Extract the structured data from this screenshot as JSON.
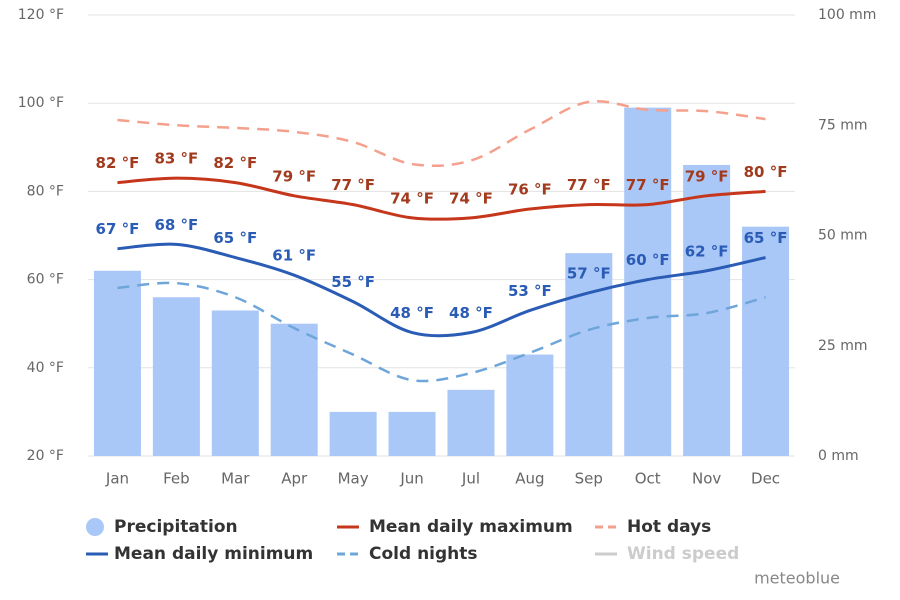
{
  "chart_data": {
    "type": "bar",
    "categories": [
      "Jan",
      "Feb",
      "Mar",
      "Apr",
      "May",
      "Jun",
      "Jul",
      "Aug",
      "Sep",
      "Oct",
      "Nov",
      "Dec"
    ],
    "ylim": [
      20,
      120
    ],
    "yticks": [
      {
        "value": 20,
        "label": "20 °F"
      },
      {
        "value": 40,
        "label": "40 °F"
      },
      {
        "value": 60,
        "label": "60 °F"
      },
      {
        "value": 80,
        "label": "80 °F"
      },
      {
        "value": 100,
        "label": "100 °F"
      },
      {
        "value": 120,
        "label": "120 °F"
      }
    ],
    "y2lim": [
      0,
      100
    ],
    "y2ticks": [
      {
        "value": 0,
        "label": "0 mm"
      },
      {
        "value": 25,
        "label": "25 mm"
      },
      {
        "value": 50,
        "label": "50 mm"
      },
      {
        "value": 75,
        "label": "75 mm"
      },
      {
        "value": 100,
        "label": "100 mm"
      }
    ],
    "grid": true,
    "series": [
      {
        "name": "Precipitation",
        "type": "bar",
        "axis": "y2",
        "color": "#a9c7f7",
        "values": [
          42,
          36,
          33,
          30,
          10,
          10,
          15,
          23,
          46,
          79,
          66,
          52
        ]
      },
      {
        "name": "Mean daily maximum",
        "type": "line",
        "color": "#c6361b",
        "label_color": "#a23a1e",
        "values": [
          82,
          83,
          82,
          79,
          77,
          74,
          74,
          76,
          77,
          77,
          79,
          80
        ],
        "value_labels": [
          "82 °F",
          "83 °F",
          "82 °F",
          "79 °F",
          "77 °F",
          "74 °F",
          "74 °F",
          "76 °F",
          "77 °F",
          "77 °F",
          "79 °F",
          "80 °F"
        ]
      },
      {
        "name": "Hot days",
        "type": "line",
        "dashed": true,
        "color": "#f4a08c",
        "values": [
          96.2,
          95,
          94.4,
          93.5,
          91.2,
          86.2,
          87,
          94,
          100.3,
          98.5,
          98.2,
          96.4
        ]
      },
      {
        "name": "Mean daily minimum",
        "type": "line",
        "color": "#2a5bb5",
        "label_color": "#2a5bb5",
        "values": [
          67,
          68,
          65,
          61,
          55,
          48,
          48,
          53,
          57,
          60,
          62,
          65
        ],
        "value_labels": [
          "67 °F",
          "68 °F",
          "65 °F",
          "61 °F",
          "55 °F",
          "48 °F",
          "48 °F",
          "53 °F",
          "57 °F",
          "60 °F",
          "62 °F",
          "65 °F"
        ]
      },
      {
        "name": "Cold nights",
        "type": "line",
        "dashed": true,
        "color": "#6fa6da",
        "values": [
          58.1,
          59.2,
          56,
          49,
          43,
          37.2,
          38.8,
          43.4,
          48.6,
          51.3,
          52.4,
          56
        ]
      },
      {
        "name": "Wind speed",
        "type": "line",
        "visible": false,
        "color": "#cccccc"
      }
    ],
    "source": "meteoblue"
  }
}
